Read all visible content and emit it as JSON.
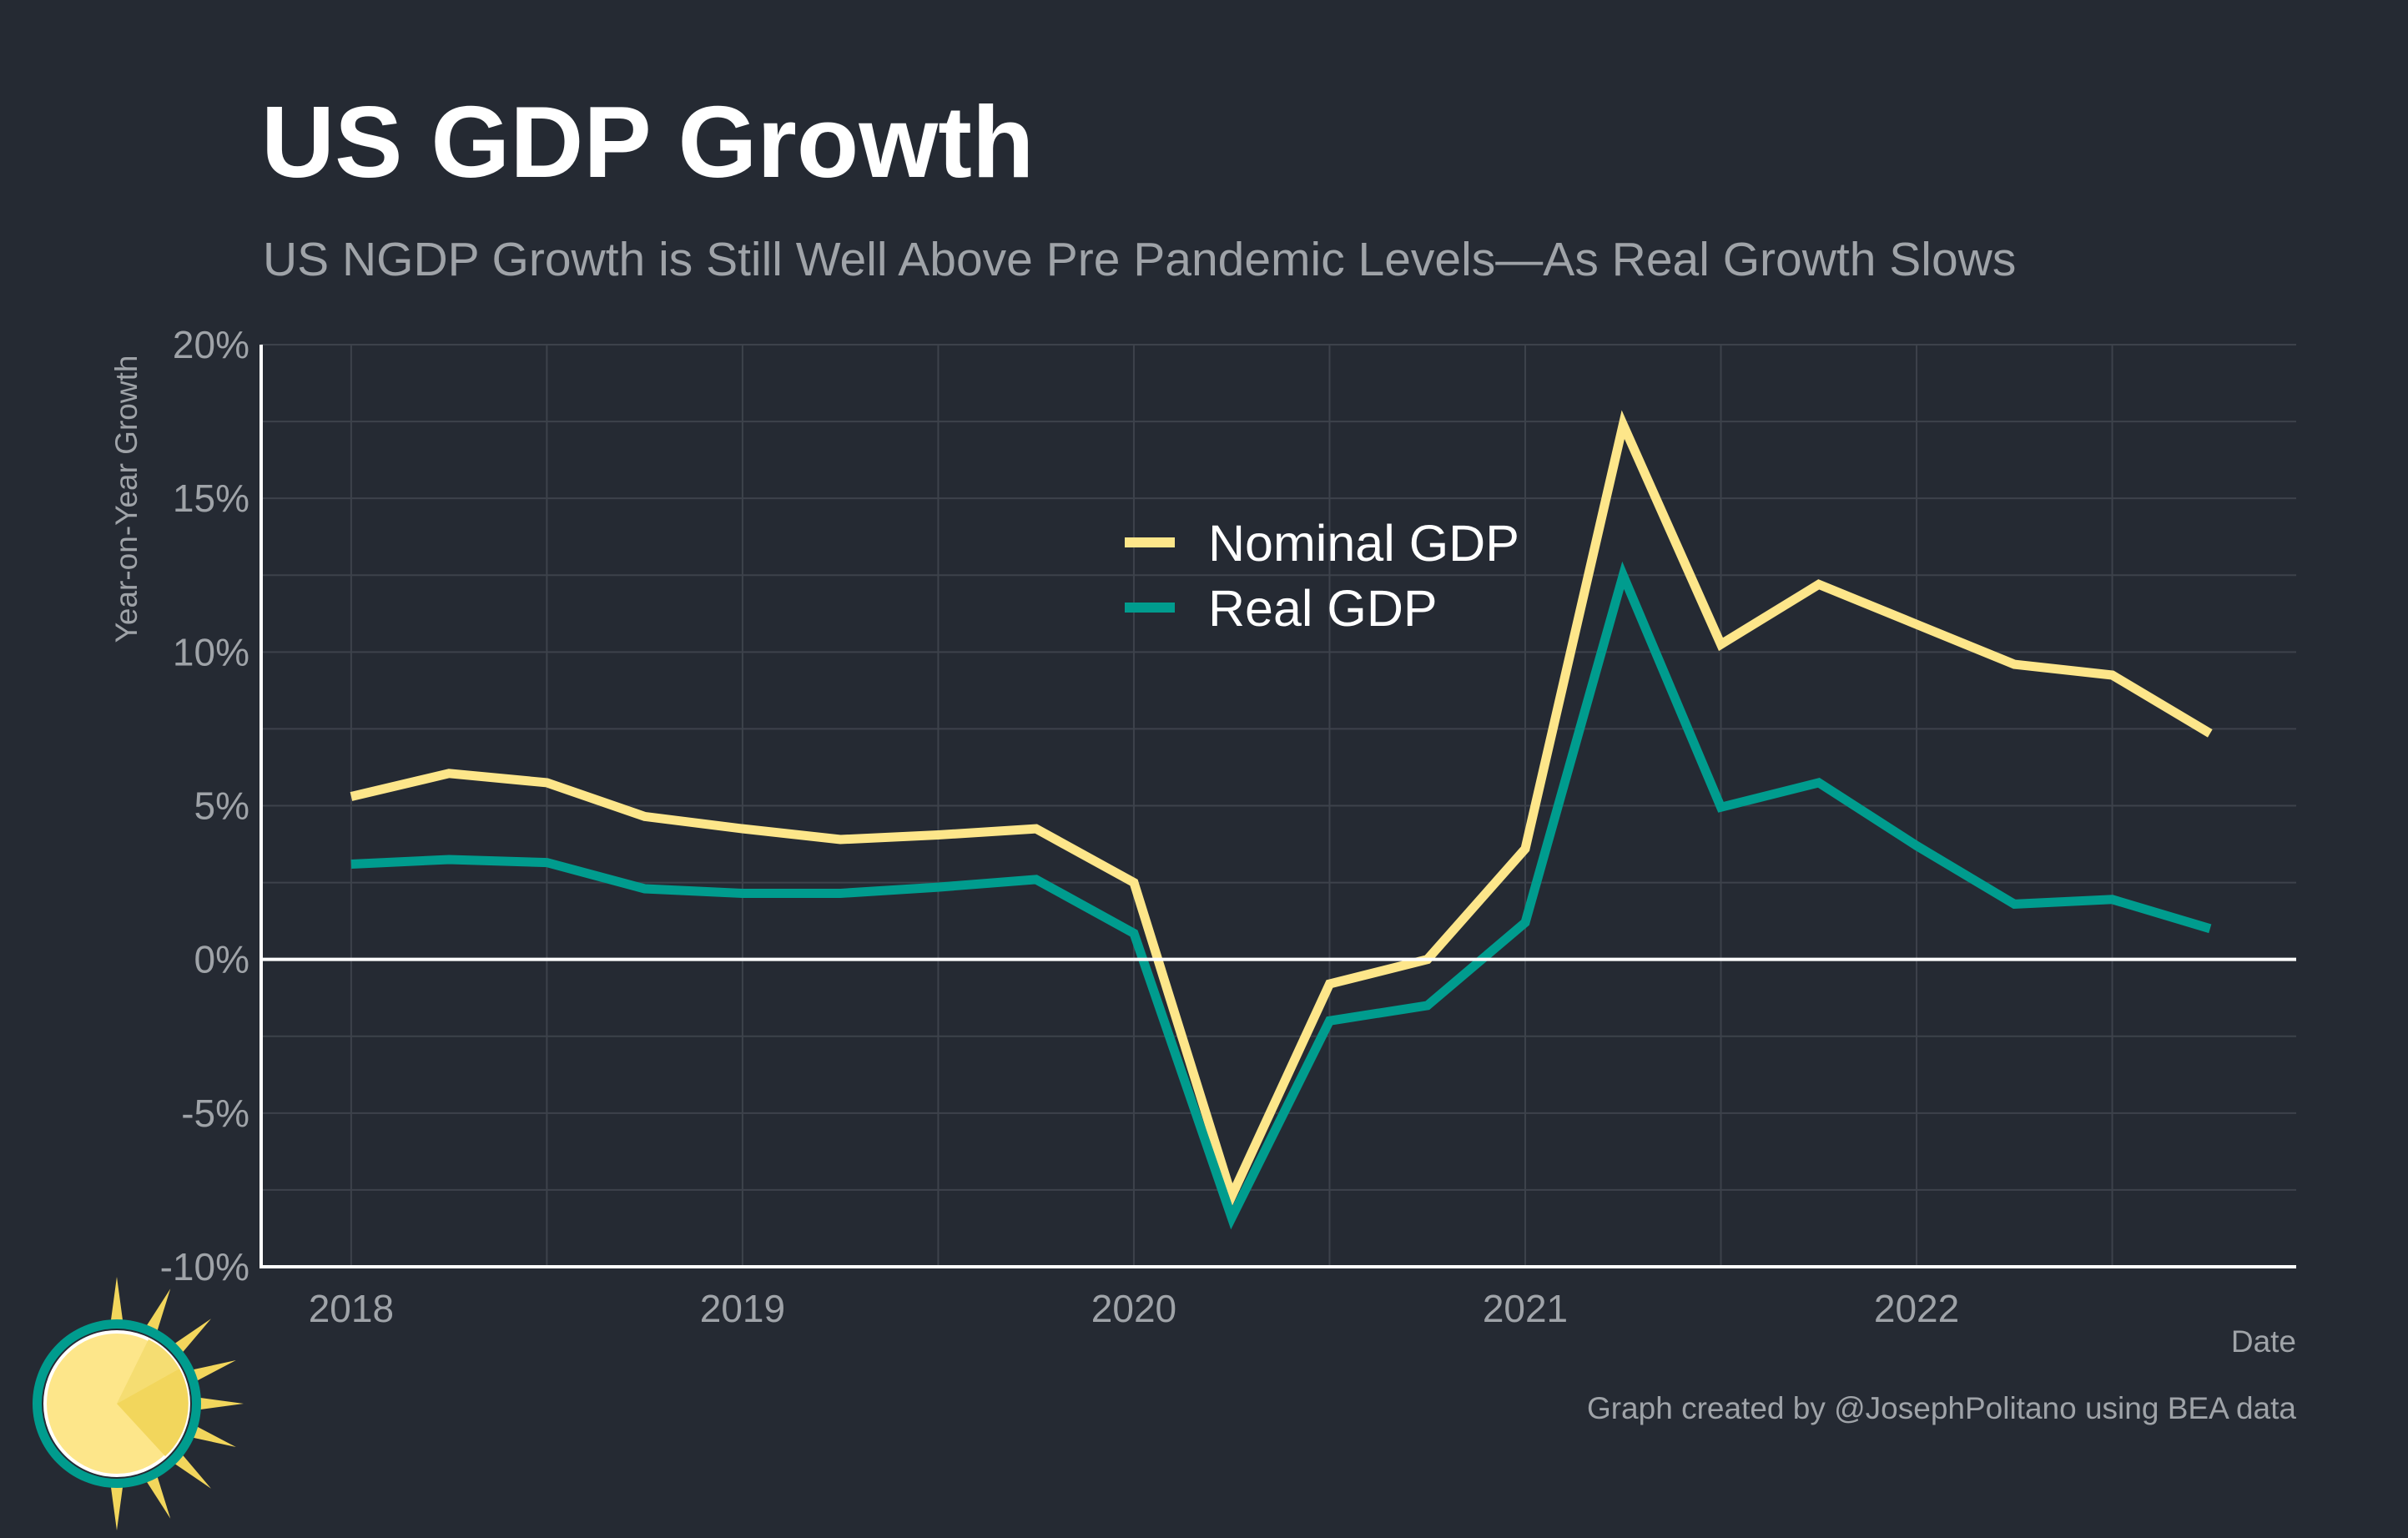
{
  "title": "US GDP Growth",
  "subtitle": "US NGDP Growth is Still Well Above Pre Pandemic Levels—As Real Growth Slows",
  "caption": "Graph created by @JosephPolitano using BEA data",
  "logo_icon": "sun-logo-icon",
  "colors": {
    "background": "#252a33",
    "nominal": "#fde68a",
    "real": "#009c8e",
    "grid": "#3d424b",
    "axis": "#ffffff",
    "text_muted": "#9fa3a8"
  },
  "chart_data": {
    "type": "line",
    "title": "US GDP Growth",
    "xlabel": "Date",
    "ylabel": "Year-on-Year Growth",
    "xlim": [
      2017.77,
      2022.97
    ],
    "ylim": [
      -10,
      20
    ],
    "x_ticks": [
      2018,
      2019,
      2020,
      2021,
      2022
    ],
    "x_tick_labels": [
      "2018",
      "2019",
      "2020",
      "2021",
      "2022"
    ],
    "y_ticks": [
      -10,
      -5,
      0,
      5,
      10,
      15,
      20
    ],
    "y_tick_labels": [
      "-10%",
      "-5%",
      "0%",
      "5%",
      "10%",
      "15%",
      "20%"
    ],
    "grid": true,
    "zero_line": true,
    "legend_position": "top-center",
    "x": [
      2018.0,
      2018.25,
      2018.5,
      2018.75,
      2019.0,
      2019.25,
      2019.5,
      2019.75,
      2020.0,
      2020.25,
      2020.5,
      2020.75,
      2021.0,
      2021.25,
      2021.5,
      2021.75,
      2022.0,
      2022.25,
      2022.5,
      2022.75
    ],
    "series": [
      {
        "name": "Nominal GDP",
        "color": "#fde68a",
        "values": [
          5.3,
          6.05,
          5.75,
          4.65,
          4.25,
          3.9,
          4.05,
          4.25,
          2.5,
          -7.7,
          -0.8,
          0.0,
          3.6,
          17.4,
          10.25,
          12.2,
          10.9,
          9.6,
          9.25,
          7.35
        ]
      },
      {
        "name": "Real GDP",
        "color": "#009c8e",
        "values": [
          3.1,
          3.25,
          3.15,
          2.3,
          2.15,
          2.15,
          2.35,
          2.6,
          0.85,
          -8.4,
          -2.0,
          -1.5,
          1.2,
          12.5,
          4.95,
          5.75,
          3.7,
          1.8,
          1.95,
          1.0
        ]
      }
    ]
  }
}
